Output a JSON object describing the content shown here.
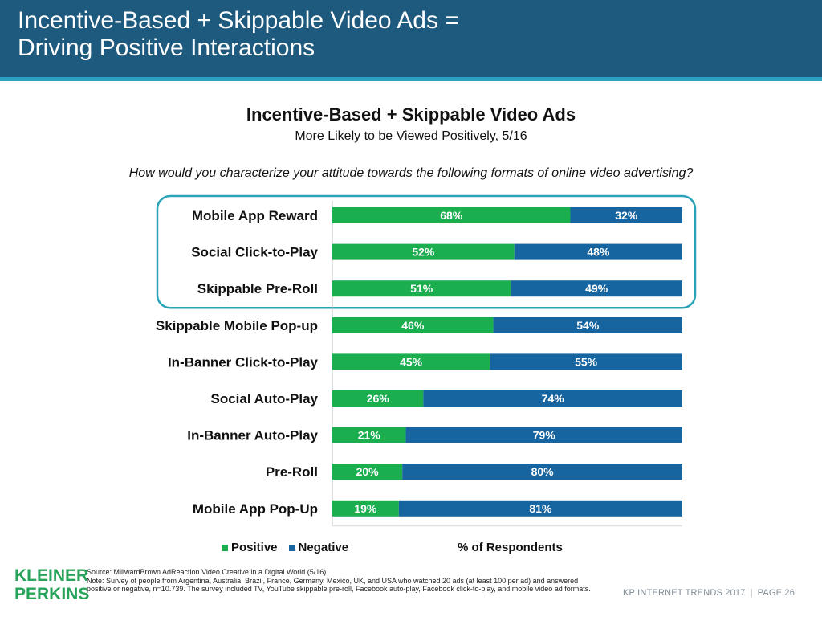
{
  "header": {
    "title_line1": "Incentive-Based + Skippable Video Ads =",
    "title_line2": "Driving Positive Interactions"
  },
  "chart_data": {
    "type": "bar",
    "orientation": "horizontal",
    "stacked": true,
    "title": "Incentive-Based + Skippable Video Ads",
    "subtitle": "More Likely to be Viewed Positively, 5/16",
    "question": "How would you characterize your attitude towards the following formats of online video advertising?",
    "categories": [
      "Mobile App Reward",
      "Social Click-to-Play",
      "Skippable Pre-Roll",
      "Skippable Mobile Pop-up",
      "In-Banner Click-to-Play",
      "Social Auto-Play",
      "In-Banner Auto-Play",
      "Pre-Roll",
      "Mobile App Pop-Up"
    ],
    "series": [
      {
        "name": "Positive",
        "color": "#1aae4f",
        "values": [
          68,
          52,
          51,
          46,
          45,
          26,
          21,
          20,
          19
        ]
      },
      {
        "name": "Negative",
        "color": "#1664a0",
        "values": [
          32,
          48,
          49,
          54,
          55,
          74,
          79,
          80,
          81
        ]
      }
    ],
    "xlim": [
      0,
      100
    ],
    "xlabel": "% of Respondents",
    "highlight": {
      "categories": [
        "Mobile App Reward",
        "Social Click-to-Play",
        "Skippable Pre-Roll"
      ],
      "color": "#2aa3b8"
    },
    "legend_position": "bottom-left"
  },
  "legend": {
    "positive_label": "Positive",
    "negative_label": "Negative",
    "axis_label": "% of Respondents"
  },
  "footer": {
    "logo_line1": "KLEINER",
    "logo_line2": "PERKINS",
    "source": "Source: MillwardBrown AdReaction Video Creative in a Digital World (5/16)",
    "note": "Note: Survey of people from Argentina, Australia, Brazil, France, Germany, Mexico, UK, and USA who watched 20 ads (at least 100 per ad) and answered positive or negative, n=10.739. The survey included TV, YouTube skippable pre-roll, Facebook auto-play, Facebook click-to-play, and mobile video ad formats.",
    "report": "KP INTERNET TRENDS 2017",
    "page": "PAGE 26"
  }
}
